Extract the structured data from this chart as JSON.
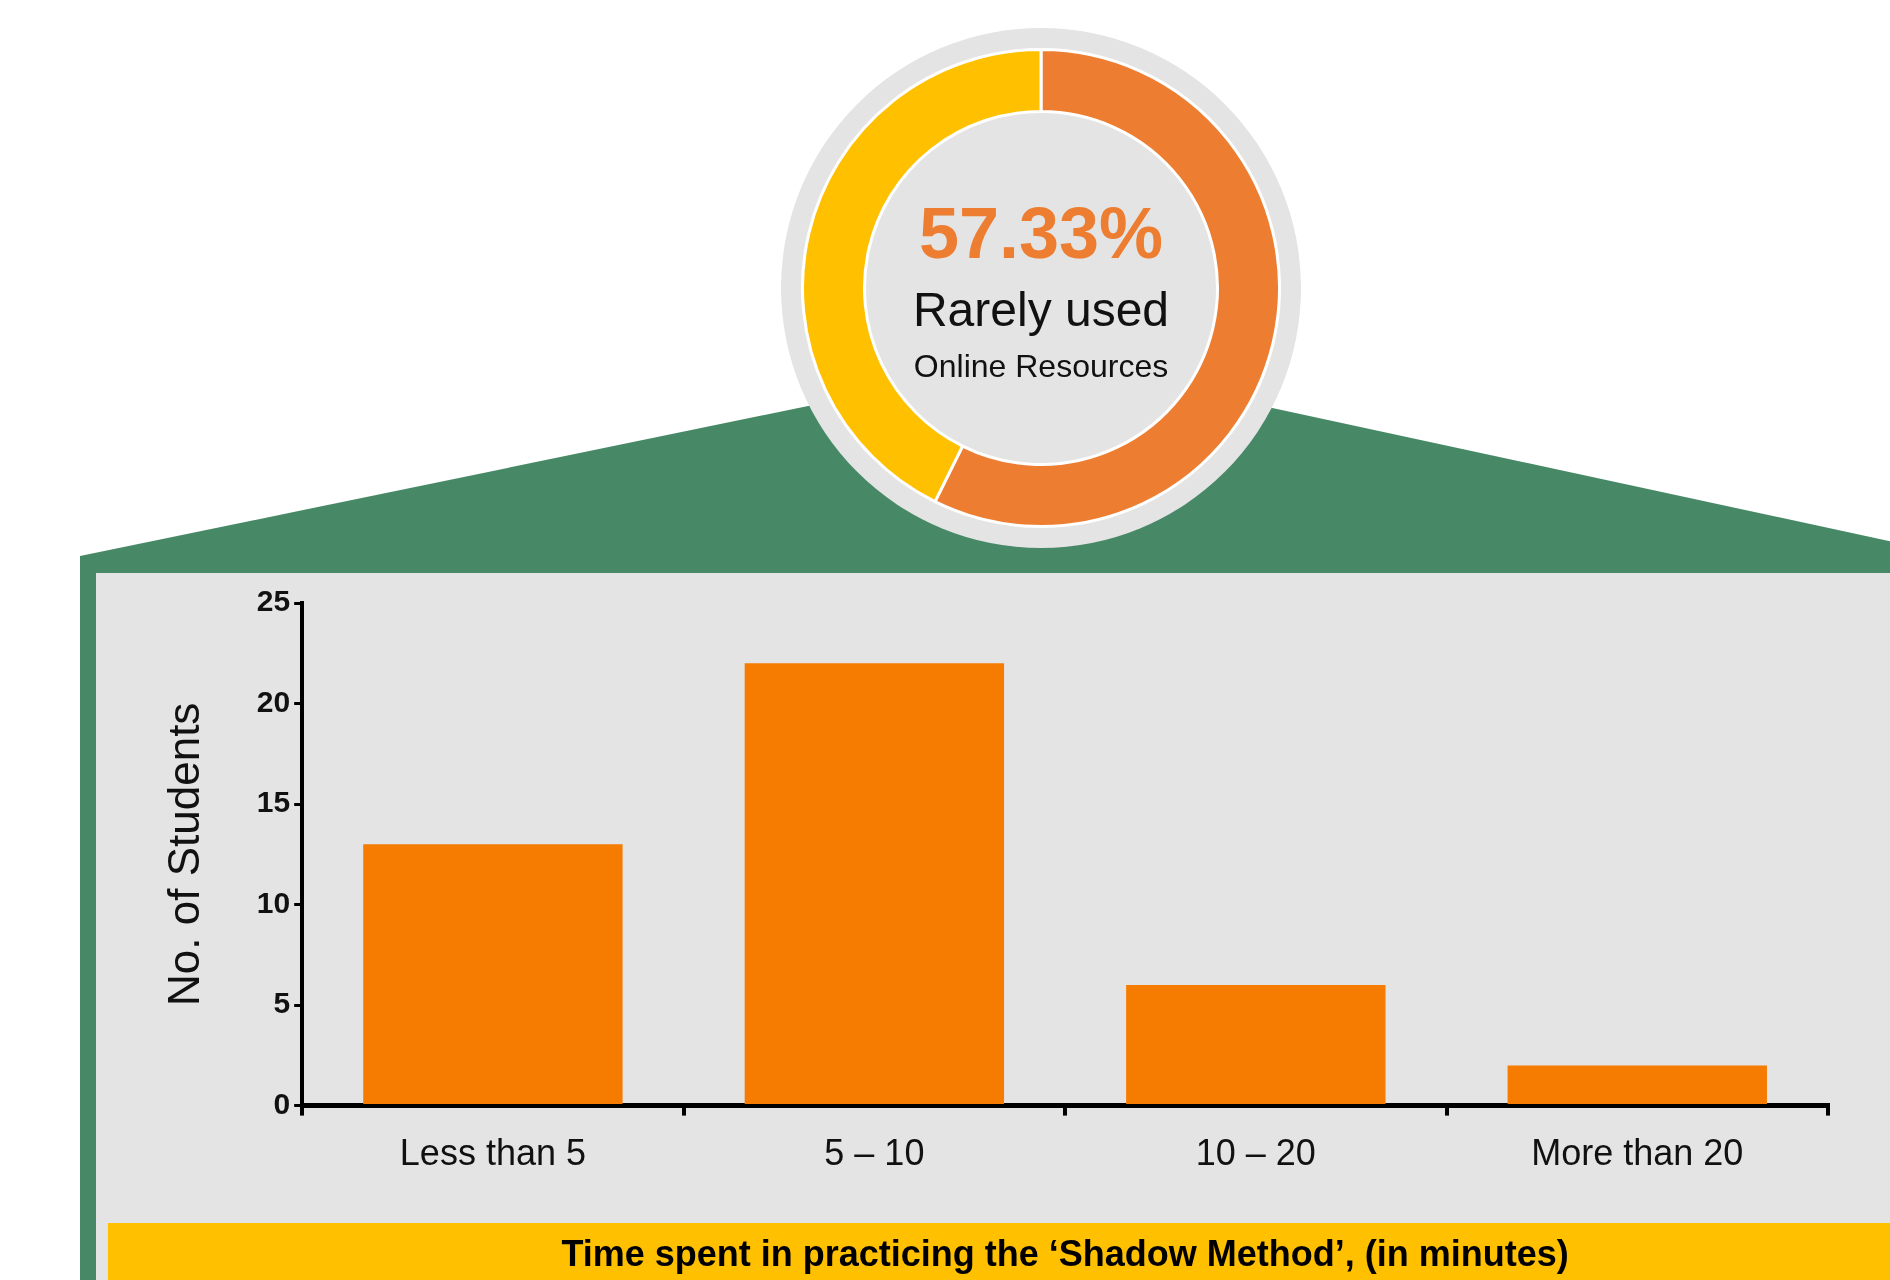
{
  "chart_data": [
    {
      "type": "donut",
      "categories": [
        null,
        null
      ],
      "values": [
        57.33,
        42.67
      ],
      "colors": [
        "#ed7d31",
        "#ffc000"
      ],
      "value_labels": [
        "57.33%",
        null
      ],
      "annotations": [
        "Rarely used",
        "Online Resources"
      ]
    },
    {
      "type": "bar",
      "categories": [
        "Less than 5",
        "5 – 10",
        "10 – 20",
        "More than 20"
      ],
      "values": [
        13,
        22,
        6,
        2
      ],
      "color": "#f57c00",
      "ylabel": "No. of Students",
      "xlabel": "Time spent in practicing the ‘Shadow Method’, (in minutes)",
      "ylim": [
        0,
        25
      ],
      "yticks": [
        0,
        5,
        10,
        15,
        20,
        25
      ],
      "grid": false,
      "legend": false
    }
  ]
}
